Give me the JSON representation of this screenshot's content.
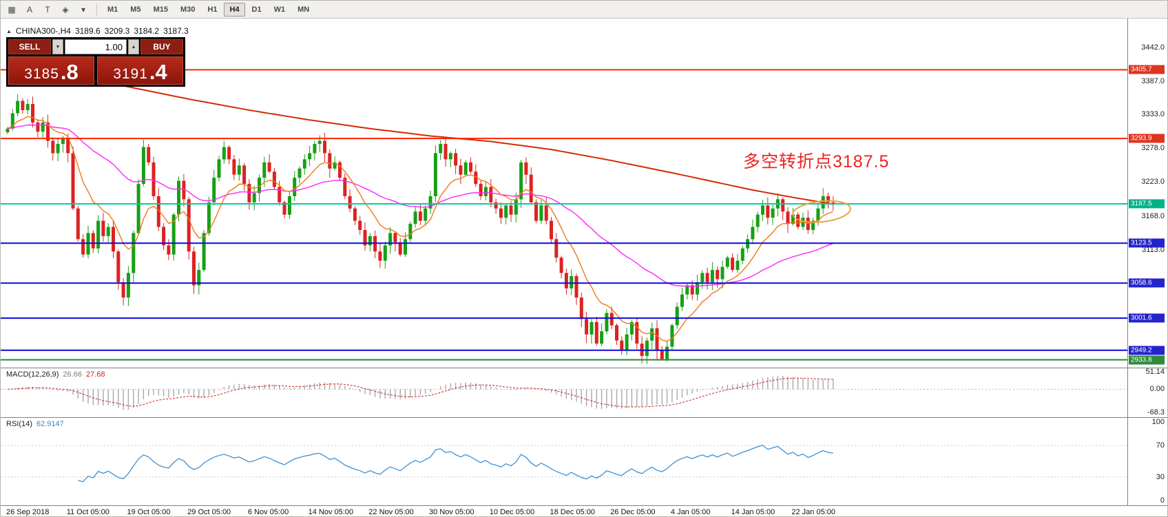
{
  "toolbar": {
    "tools": [
      {
        "name": "grid-tool-icon",
        "glyph": "▦"
      },
      {
        "name": "letter-a-tool-icon",
        "glyph": "A"
      },
      {
        "name": "text-label-tool-icon",
        "glyph": "T"
      },
      {
        "name": "drawing-tools-icon",
        "glyph": "◈"
      },
      {
        "name": "dropdown-caret-icon",
        "glyph": "▾"
      }
    ],
    "timeframes": [
      {
        "label": "M1",
        "active": false
      },
      {
        "label": "M5",
        "active": false
      },
      {
        "label": "M15",
        "active": false
      },
      {
        "label": "M30",
        "active": false
      },
      {
        "label": "H1",
        "active": false
      },
      {
        "label": "H4",
        "active": true
      },
      {
        "label": "D1",
        "active": false
      },
      {
        "label": "W1",
        "active": false
      },
      {
        "label": "MN",
        "active": false
      }
    ]
  },
  "symbol_header": {
    "collapse_icon": "▲",
    "symbol": "CHINA300-,H4",
    "open": "3189.6",
    "high": "3209.3",
    "low": "3184.2",
    "close": "3187.3"
  },
  "trade_panel": {
    "sell_label": "SELL",
    "buy_label": "BUY",
    "volume": "1.00",
    "sell_price_main": "3185",
    "sell_price_pips": ".8",
    "buy_price_main": "3191",
    "buy_price_pips": ".4"
  },
  "annotation": {
    "text": "多空转折点3187.5",
    "color": "#ee2222"
  },
  "price_axis": {
    "plain_ticks": [
      {
        "label": "3442.0",
        "value": 3442.0
      },
      {
        "label": "3387.0",
        "value": 3387.0
      },
      {
        "label": "3333.0",
        "value": 3333.0
      },
      {
        "label": "3278.0",
        "value": 3278.0
      },
      {
        "label": "3223.0",
        "value": 3223.0
      },
      {
        "label": "3168.0",
        "value": 3168.0
      },
      {
        "label": "3113.0",
        "value": 3113.0
      }
    ]
  },
  "hlines": [
    {
      "label": "3405.7",
      "value": 3405.7,
      "line_color": "#ff2200",
      "badge_color": "#de3420",
      "width": 2
    },
    {
      "label": "3293.9",
      "value": 3293.9,
      "line_color": "#ff2200",
      "badge_color": "#de3420",
      "width": 2
    },
    {
      "label": "3187.5",
      "value": 3187.5,
      "line_color": "#00cc99",
      "badge_color": "#00b287",
      "width": 2
    },
    {
      "label": "3123.5",
      "value": 3123.5,
      "line_color": "#0a0adc",
      "badge_color": "#2424cc",
      "width": 2
    },
    {
      "label": "3058.6",
      "value": 3058.6,
      "line_color": "#0a0adc",
      "badge_color": "#2424cc",
      "width": 2
    },
    {
      "label": "3001.6",
      "value": 3001.6,
      "line_color": "#0a0adc",
      "badge_color": "#2424cc",
      "width": 2
    },
    {
      "label": "2949.2",
      "value": 2949.2,
      "line_color": "#0a0adc",
      "badge_color": "#2424cc",
      "width": 2
    },
    {
      "label": "2933.8",
      "value": 2933.8,
      "line_color": "#1f8c2f",
      "badge_color": "#2e8c3c",
      "width": 2
    }
  ],
  "macd": {
    "name": "MACD(12,26,9)",
    "value_main": "26.66",
    "value_signal": "27.68",
    "range": [
      -85,
      62
    ],
    "axis": [
      {
        "label": "51.14",
        "value": 51.14
      },
      {
        "label": "0.00",
        "value": 0
      },
      {
        "label": "-68.3",
        "value": -68.3
      }
    ],
    "histogram_color": "#a8a8a8",
    "signal_color": "#cc2020"
  },
  "rsi": {
    "name": "RSI(14)",
    "value": "62.9147",
    "period": 14,
    "range": [
      0,
      100
    ],
    "axis": [
      {
        "label": "100",
        "value": 100
      },
      {
        "label": "70",
        "value": 70
      },
      {
        "label": "30",
        "value": 30
      },
      {
        "label": "0",
        "value": 0
      }
    ],
    "levels": [
      70,
      30
    ],
    "line_color": "#3f8fd2"
  },
  "time_axis": {
    "labels": [
      "26 Sep 2018",
      "11 Oct 05:00",
      "19 Oct 05:00",
      "29 Oct 05:00",
      "6 Nov 05:00",
      "14 Nov 05:00",
      "22 Nov 05:00",
      "30 Nov 05:00",
      "10 Dec 05:00",
      "18 Dec 05:00",
      "26 Dec 05:00",
      "4 Jan 05:00",
      "14 Jan 05:00",
      "22 Jan 05:00"
    ],
    "candles_per_label": 12
  },
  "chart_data": {
    "type": "candlestick",
    "symbol": "CHINA300-",
    "timeframe": "H4",
    "title": "CHINA300-,H4",
    "current_ohlc": {
      "open": 3189.6,
      "high": 3209.3,
      "low": 3184.2,
      "close": 3187.3
    },
    "bid": 3185.8,
    "ask": 3191.4,
    "y_range": [
      2921,
      3489
    ],
    "closes": [
      3310,
      3335,
      3355,
      3340,
      3350,
      3320,
      3305,
      3320,
      3290,
      3270,
      3285,
      3295,
      3270,
      3180,
      3130,
      3105,
      3140,
      3115,
      3160,
      3135,
      3150,
      3110,
      3060,
      3035,
      3075,
      3140,
      3220,
      3280,
      3255,
      3200,
      3150,
      3120,
      3105,
      3170,
      3225,
      3195,
      3110,
      3055,
      3080,
      3140,
      3190,
      3230,
      3260,
      3280,
      3260,
      3235,
      3250,
      3220,
      3190,
      3205,
      3230,
      3255,
      3240,
      3215,
      3190,
      3170,
      3200,
      3230,
      3245,
      3260,
      3270,
      3285,
      3290,
      3270,
      3245,
      3255,
      3230,
      3200,
      3180,
      3160,
      3145,
      3120,
      3135,
      3110,
      3095,
      3120,
      3140,
      3125,
      3105,
      3130,
      3155,
      3175,
      3160,
      3180,
      3200,
      3270,
      3285,
      3260,
      3270,
      3250,
      3235,
      3255,
      3240,
      3220,
      3200,
      3215,
      3190,
      3180,
      3165,
      3185,
      3170,
      3195,
      3255,
      3235,
      3190,
      3160,
      3185,
      3160,
      3130,
      3100,
      3075,
      3050,
      3070,
      3035,
      3000,
      2975,
      2995,
      2960,
      2980,
      3010,
      2990,
      2965,
      2950,
      2975,
      2995,
      2960,
      2940,
      2965,
      2985,
      2950,
      2935,
      2955,
      2990,
      3020,
      3040,
      3055,
      3040,
      3060,
      3075,
      3060,
      3080,
      3065,
      3085,
      3100,
      3080,
      3095,
      3115,
      3130,
      3150,
      3170,
      3185,
      3165,
      3180,
      3195,
      3175,
      3155,
      3170,
      3150,
      3165,
      3145,
      3160,
      3180,
      3200,
      3190,
      3187.3
    ],
    "long_ma_anchors": [
      [
        0,
        3413
      ],
      [
        12,
        3396
      ],
      [
        24,
        3378
      ],
      [
        36,
        3358
      ],
      [
        48,
        3340
      ],
      [
        60,
        3324
      ],
      [
        72,
        3310
      ],
      [
        84,
        3298
      ],
      [
        96,
        3289
      ],
      [
        108,
        3276
      ],
      [
        120,
        3258
      ],
      [
        132,
        3238
      ],
      [
        140,
        3224
      ],
      [
        148,
        3210
      ],
      [
        156,
        3198
      ],
      [
        164,
        3187
      ]
    ],
    "ema_fast_period": 10,
    "ema_slow_period": 45,
    "horizontal_levels": [
      3405.7,
      3293.9,
      3187.5,
      3123.5,
      3058.6,
      3001.6,
      2949.2,
      2933.8
    ],
    "x_tick_labels": [
      "26 Sep 2018",
      "11 Oct 05:00",
      "19 Oct 05:00",
      "29 Oct 05:00",
      "6 Nov 05:00",
      "14 Nov 05:00",
      "22 Nov 05:00",
      "30 Nov 05:00",
      "10 Dec 05:00",
      "18 Dec 05:00",
      "26 Dec 05:00",
      "4 Jan 05:00",
      "14 Jan 05:00",
      "22 Jan 05:00"
    ],
    "annotation": "多空转折点3187.5",
    "indicators": {
      "macd": {
        "params": [
          12,
          26,
          9
        ],
        "main": 26.66,
        "signal": 27.68
      },
      "rsi": {
        "period": 14,
        "value": 62.9147
      }
    },
    "colors": {
      "up": "#16a016",
      "down": "#dd2222",
      "ma_fast": "#f07818",
      "ma_slow": "#ff22ff",
      "ma_long": "#d42b00"
    }
  }
}
